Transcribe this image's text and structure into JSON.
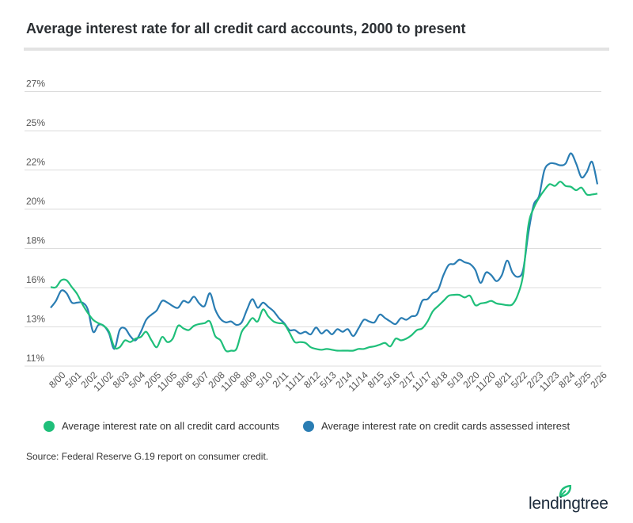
{
  "title": "Average interest rate for all credit card accounts, 2000 to present",
  "chart_data": {
    "type": "line",
    "title": "Average interest rate for all credit card accounts, 2000 to present",
    "y_tick_labels": [
      "11%",
      "13%",
      "16%",
      "18%",
      "20%",
      "22%",
      "25%",
      "27%"
    ],
    "ylim": [
      11,
      27
    ],
    "x_tick_labels": [
      "8/00",
      "5/01",
      "2/02",
      "11/02",
      "8/03",
      "5/04",
      "2/05",
      "11/05",
      "8/06",
      "5/07",
      "2/08",
      "11/08",
      "8/09",
      "5/10",
      "2/11",
      "11/11",
      "8/12",
      "5/13",
      "2/14",
      "11/14",
      "8/15",
      "5/16",
      "2/17",
      "11/17",
      "8/18",
      "5/19",
      "2/20",
      "11/20",
      "8/21",
      "5/22",
      "2/23",
      "11/23",
      "8/24",
      "5/25",
      "2/26"
    ],
    "x_start": "2/00",
    "x_end": "11/25",
    "x_frequency": "quarterly",
    "grid": "horizontal",
    "legend_placement": "bottom",
    "series": [
      {
        "name": "Average interest rate on all credit card accounts",
        "color": "#1fbf7a",
        "values": [
          15.6,
          15.6,
          16.0,
          16.0,
          15.6,
          15.2,
          14.6,
          14.1,
          13.7,
          13.5,
          13.35,
          13.0,
          12.1,
          12.1,
          12.5,
          12.4,
          12.6,
          12.7,
          13.0,
          12.5,
          12.1,
          12.7,
          12.4,
          12.6,
          13.35,
          13.2,
          13.1,
          13.35,
          13.45,
          13.5,
          13.6,
          12.75,
          12.5,
          11.9,
          11.9,
          12.0,
          13.0,
          13.4,
          13.8,
          13.6,
          14.3,
          13.9,
          13.6,
          13.5,
          13.45,
          12.95,
          12.4,
          12.4,
          12.35,
          12.1,
          12.0,
          11.95,
          12.0,
          11.95,
          11.9,
          11.9,
          11.9,
          11.9,
          12.0,
          12.0,
          12.1,
          12.15,
          12.25,
          12.35,
          12.15,
          12.6,
          12.5,
          12.6,
          12.8,
          13.1,
          13.2,
          13.6,
          14.2,
          14.5,
          14.8,
          15.1,
          15.15,
          15.15,
          15.0,
          15.1,
          14.55,
          14.65,
          14.7,
          14.8,
          14.65,
          14.6,
          14.55,
          14.6,
          15.15,
          16.3,
          19.2,
          20.2,
          20.8,
          21.25,
          21.6,
          21.5,
          21.75,
          21.5,
          21.45,
          21.25,
          21.4,
          21.0,
          21.0,
          21.05
        ]
      },
      {
        "name": "Average interest rate on credit cards assessed interest",
        "color": "#2a7db3",
        "values": [
          14.4,
          14.8,
          15.4,
          15.25,
          14.7,
          14.7,
          14.7,
          14.3,
          13.0,
          13.4,
          13.35,
          12.9,
          12.0,
          13.1,
          13.2,
          12.75,
          12.5,
          13.0,
          13.7,
          14.0,
          14.25,
          14.8,
          14.7,
          14.5,
          14.4,
          14.8,
          14.7,
          15.05,
          14.65,
          14.5,
          15.25,
          14.3,
          13.75,
          13.55,
          13.6,
          13.4,
          13.55,
          14.3,
          14.9,
          14.4,
          14.7,
          14.45,
          14.2,
          13.8,
          13.5,
          13.1,
          13.1,
          12.9,
          13.0,
          12.85,
          13.25,
          12.9,
          13.1,
          12.85,
          13.15,
          13.0,
          13.15,
          12.75,
          13.2,
          13.7,
          13.6,
          13.55,
          14.0,
          13.8,
          13.6,
          13.45,
          13.8,
          13.7,
          13.9,
          14.0,
          14.8,
          14.9,
          15.25,
          15.45,
          16.3,
          16.9,
          16.95,
          17.2,
          17.05,
          16.95,
          16.6,
          15.85,
          16.45,
          16.3,
          15.95,
          16.3,
          17.15,
          16.45,
          16.2,
          16.6,
          18.75,
          20.4,
          20.9,
          22.4,
          22.8,
          22.8,
          22.7,
          22.8,
          23.4,
          22.8,
          22.0,
          22.3,
          22.9,
          21.6
        ]
      }
    ]
  },
  "legend": {
    "items": [
      {
        "label": "Average interest rate on all credit card accounts",
        "color": "#1fbf7a"
      },
      {
        "label": "Average interest rate on credit cards assessed interest",
        "color": "#2a7db3"
      }
    ]
  },
  "source": "Source: Federal Reserve G.19 report on consumer credit.",
  "logo": {
    "text": "lendingtree",
    "icon": "leaf-icon",
    "leaf_color": "#1fbf7a"
  }
}
